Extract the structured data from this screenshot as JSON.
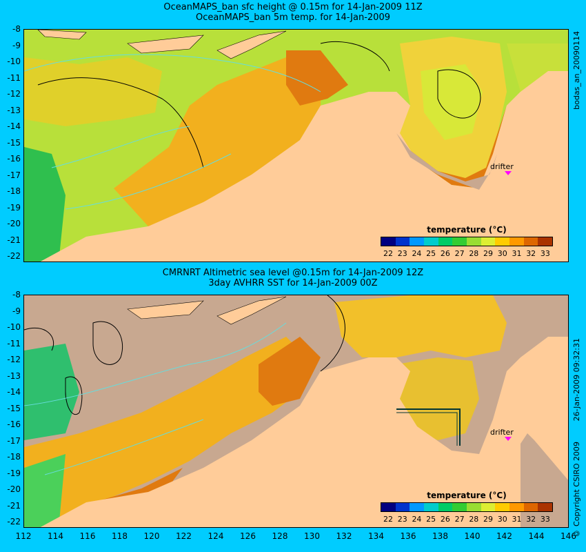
{
  "panel1": {
    "title_line1": "OceanMAPS_ban sfc height @ 0.15m for 14-Jan-2009 11Z",
    "title_line2": "OceanMAPS_ban 5m temp. for 14-Jan-2009",
    "side_label": "bodas_an_20090114",
    "drifter_label": "drifter",
    "colorbar_title": "temperature (°C)"
  },
  "panel2": {
    "title_line1": "CMRNRT Altimetric sea level  @0.15m  for 14-Jan-2009 12Z",
    "title_line2": "3day AVHRR SST for 14-Jan-2009 00Z",
    "side_label": "26-Jan-2009 09:32:31",
    "drifter_label": "drifter",
    "colorbar_title": "temperature (°C)"
  },
  "copyright": "© Copyright CSIRO 2009",
  "lat_ticks": [
    "-8",
    "-9",
    "-10",
    "-11",
    "-12",
    "-13",
    "-14",
    "-15",
    "-16",
    "-17",
    "-18",
    "-19",
    "-20",
    "-21",
    "-22"
  ],
  "lon_ticks": [
    "112",
    "114",
    "116",
    "118",
    "120",
    "122",
    "124",
    "126",
    "128",
    "130",
    "132",
    "134",
    "136",
    "138",
    "140",
    "142",
    "144",
    "146"
  ],
  "colorbar_ticks": [
    "22",
    "23",
    "24",
    "25",
    "26",
    "27",
    "28",
    "29",
    "30",
    "31",
    "32",
    "33"
  ],
  "colorbar_colors": [
    "#000080",
    "#0033cc",
    "#0099ff",
    "#00cccc",
    "#00cc66",
    "#33cc33",
    "#99dd33",
    "#ddee33",
    "#ffcc00",
    "#ff9900",
    "#dd6600",
    "#aa3300"
  ],
  "colors": {
    "background": "#00ccff",
    "land": "#ffcc99",
    "no_data": "#c8a890",
    "contour_dark": "#000000",
    "contour_light": "#66dddd",
    "drifter": "#ff00ff"
  }
}
